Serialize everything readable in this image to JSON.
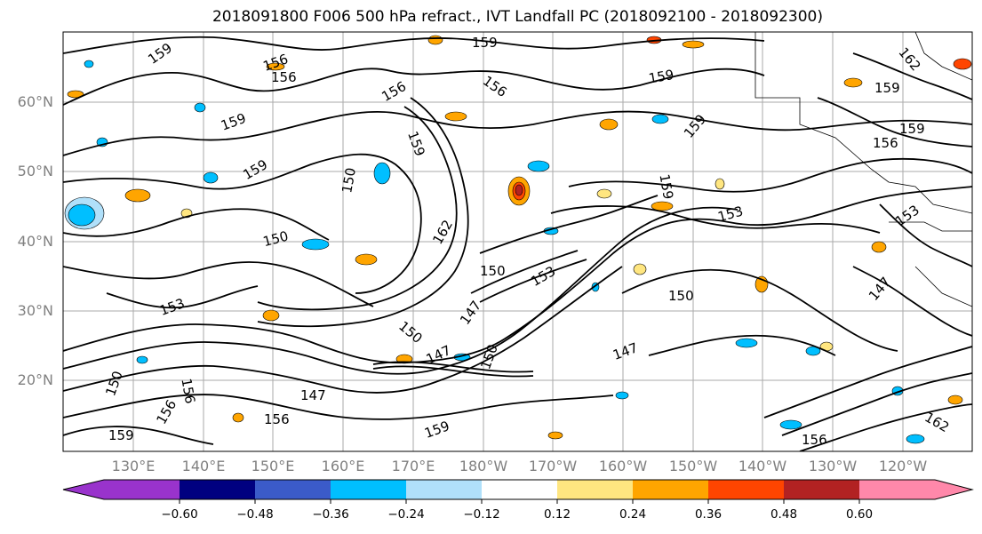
{
  "title": "2018091800 F006 500 hPa refract., IVT Landfall PC (2018092100 - 2018092300)",
  "lat_labels": [
    "60°N",
    "50°N",
    "40°N",
    "30°N",
    "20°N"
  ],
  "lon_labels": [
    "130°E",
    "140°E",
    "150°E",
    "160°E",
    "170°E",
    "180°W",
    "170°W",
    "160°W",
    "150°W",
    "140°W",
    "130°W",
    "120°W"
  ],
  "contour_labels": [
    "159",
    "156",
    "156",
    "159",
    "156",
    "159",
    "159",
    "156",
    "159",
    "159",
    "150",
    "159",
    "150",
    "159",
    "153",
    "162",
    "159",
    "156",
    "150",
    "153",
    "150",
    "147",
    "153",
    "153",
    "147",
    "150",
    "147",
    "150",
    "147",
    "156",
    "147",
    "150",
    "159",
    "156",
    "159",
    "156",
    "162",
    "162",
    "156",
    "159"
  ],
  "colorbar": {
    "ticks": [
      "−0.60",
      "−0.48",
      "−0.36",
      "−0.24",
      "−0.12",
      "0.12",
      "0.24",
      "0.36",
      "0.48",
      "0.60"
    ],
    "colors": [
      "#9933cc",
      "#000080",
      "#3b5bc9",
      "#00bfff",
      "#b0e0fa",
      "#ffffff",
      "#ffe680",
      "#ffa500",
      "#ff4500",
      "#b22222",
      "#ff88aa"
    ]
  }
}
